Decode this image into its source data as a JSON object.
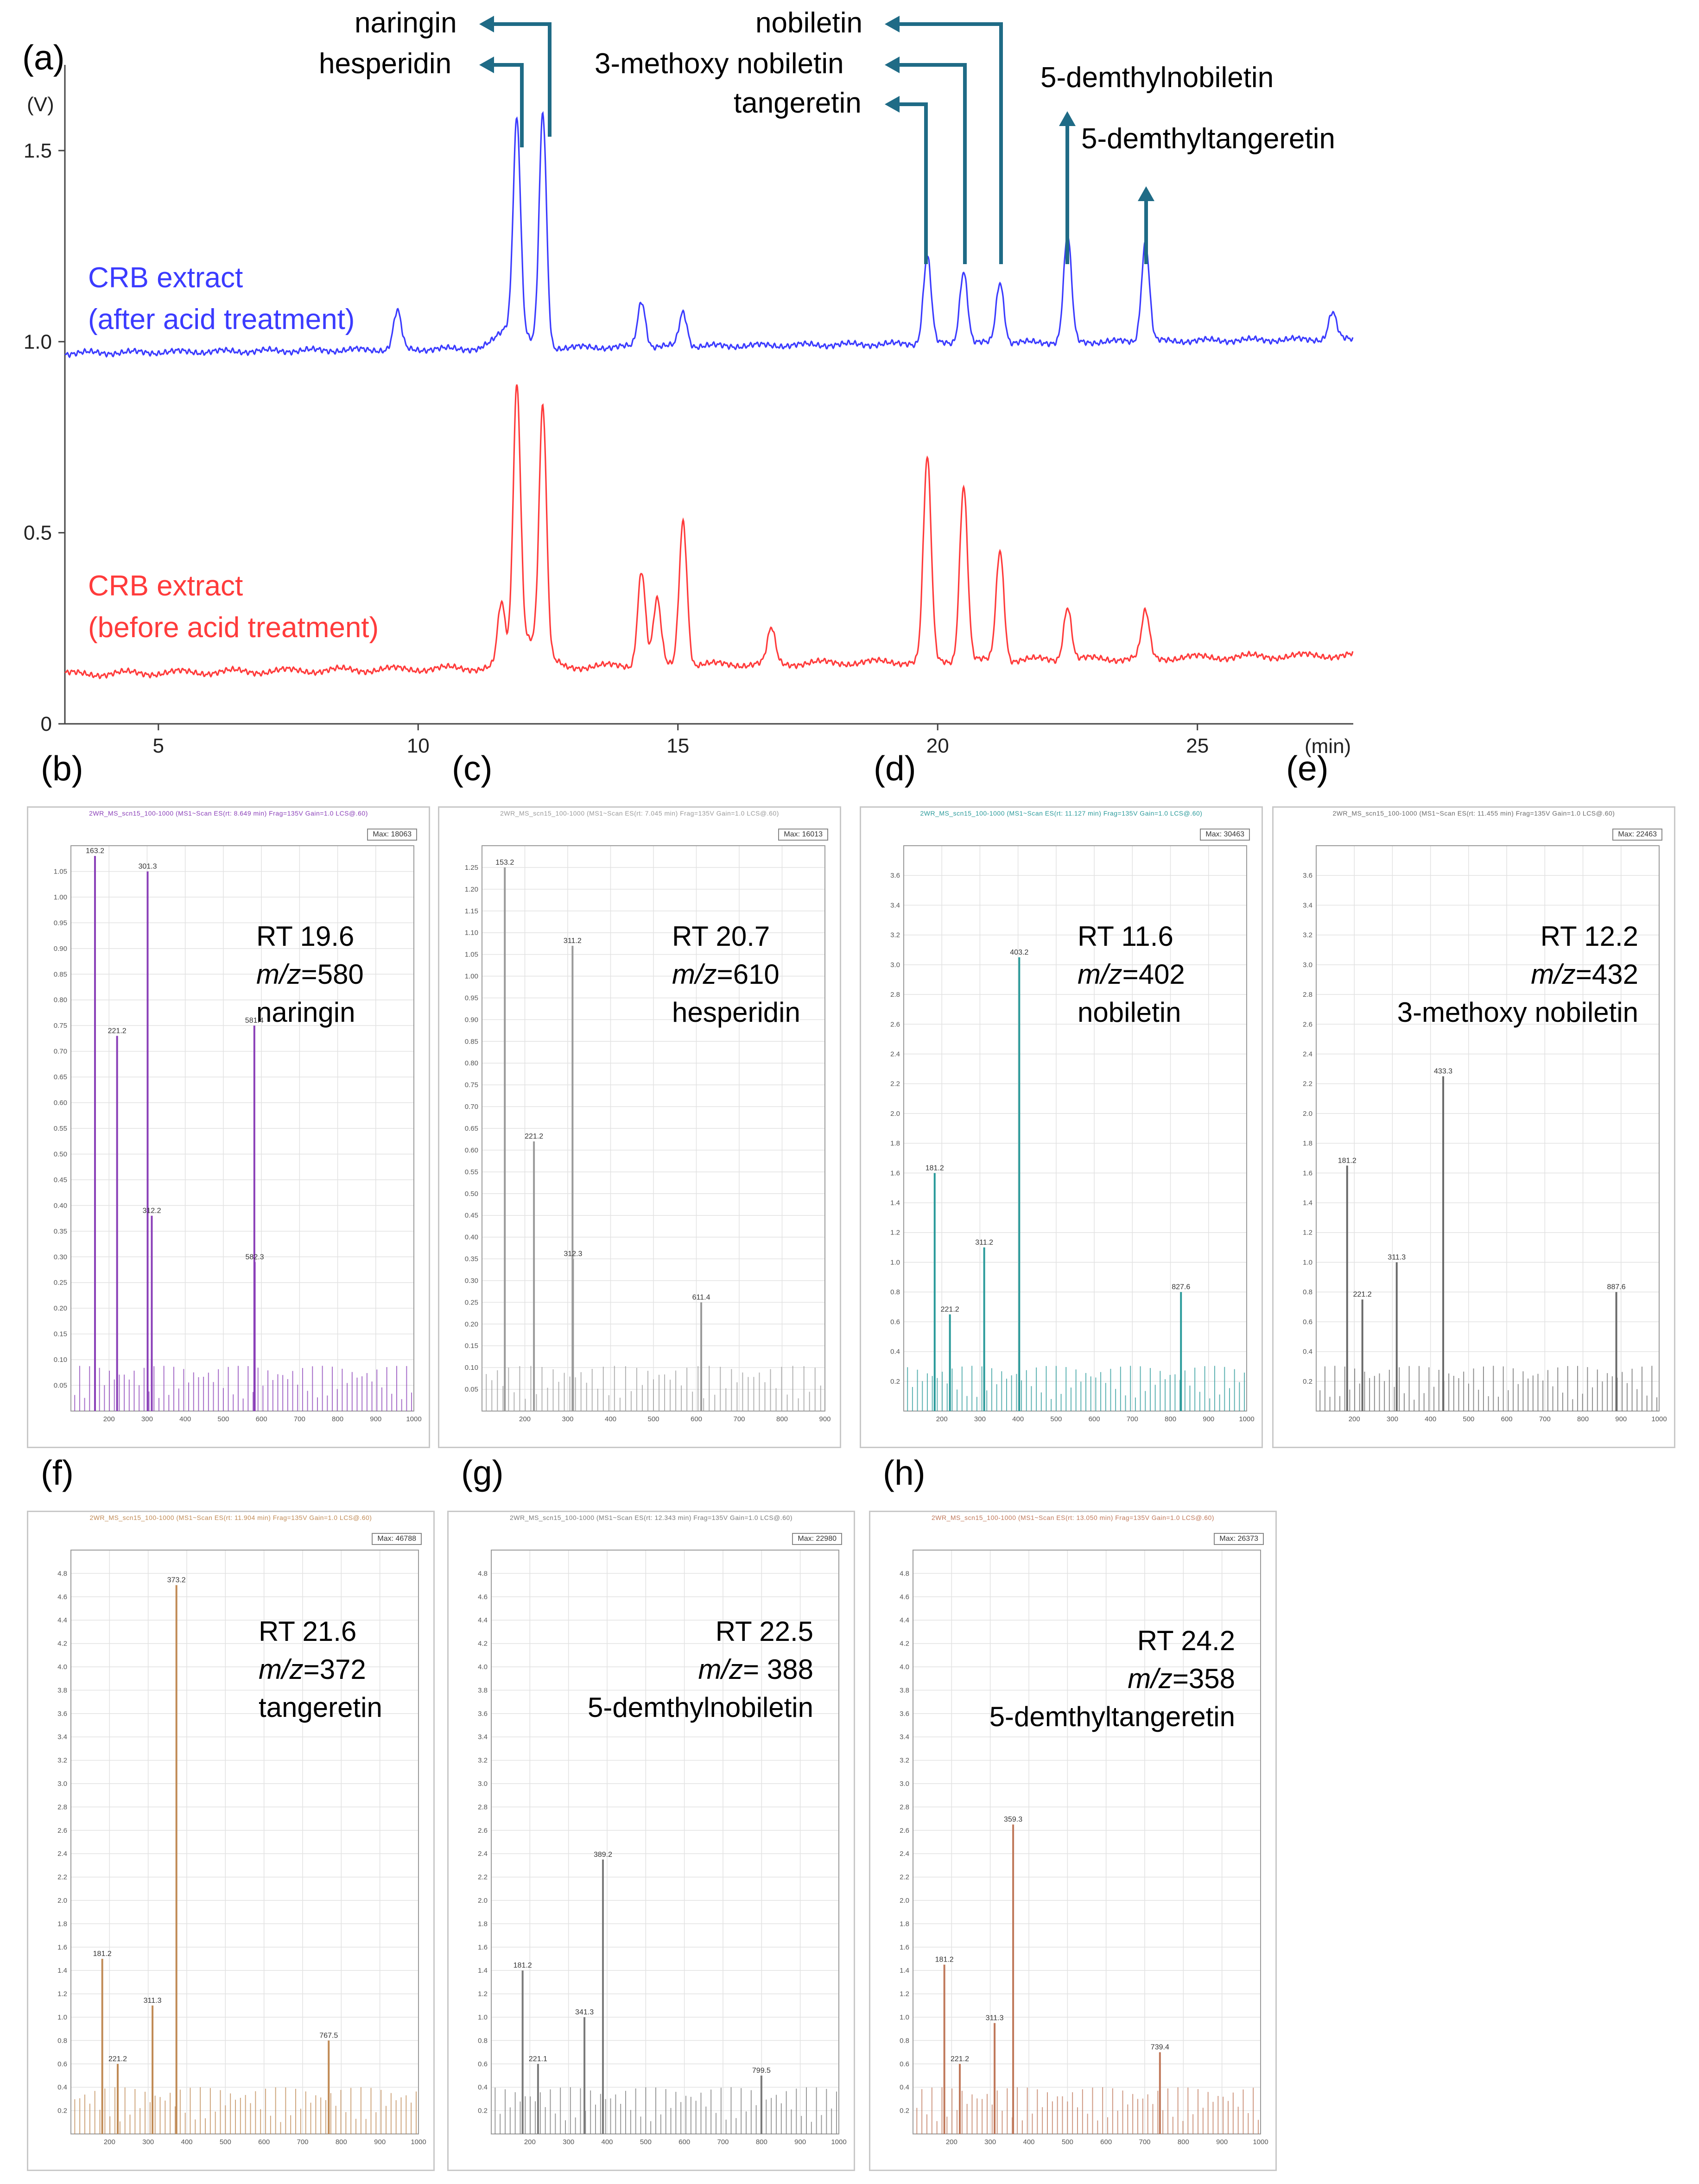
{
  "panel_a": {
    "letter": "(a)",
    "y_unit": "(V)",
    "x_unit": "(min)",
    "y_ticks": [
      "0",
      "0.5",
      "1.0",
      "1.5"
    ],
    "x_ticks": [
      "5",
      "10",
      "15",
      "20",
      "25"
    ],
    "trace_after_label_1": "CRB extract",
    "trace_after_label_2": "(after acid treatment)",
    "trace_before_label_1": "CRB extract",
    "trace_before_label_2": "(before acid treatment)",
    "compounds": {
      "naringin": "naringin",
      "hesperidin": "hesperidin",
      "nobiletin": "nobiletin",
      "methoxy_nobiletin": "3-methoxy nobiletin",
      "tangeretin": "tangeretin",
      "demethylnobiletin": "5-demthylnobiletin",
      "demethyltangeretin": "5-demthyltangeretin"
    },
    "colors": {
      "after": "#3b3bff",
      "before": "#ff3b3b",
      "arrow": "#1f6b86"
    }
  },
  "chart_data": [
    {
      "type": "line",
      "title": "",
      "xlabel": "(min)",
      "ylabel": "(V)",
      "xlim": [
        3.2,
        28
      ],
      "ylim": [
        0,
        1.7
      ],
      "series": [
        {
          "name": "CRB extract (after acid treatment)",
          "baseline": 0.97,
          "peaks": [
            {
              "x": 9.6,
              "y": 1.07,
              "label": ""
            },
            {
              "x": 11.9,
              "y": 1.52,
              "label": "naringin"
            },
            {
              "x": 12.4,
              "y": 1.58,
              "label": "hesperidin"
            },
            {
              "x": 14.3,
              "y": 1.09,
              "label": ""
            },
            {
              "x": 15.1,
              "y": 1.06,
              "label": ""
            },
            {
              "x": 19.8,
              "y": 1.2,
              "label": "tangeretin"
            },
            {
              "x": 20.5,
              "y": 1.16,
              "label": "3-methoxy nobiletin"
            },
            {
              "x": 21.2,
              "y": 1.13,
              "label": "nobiletin"
            },
            {
              "x": 22.5,
              "y": 1.25,
              "label": "5-demthylnobiletin"
            },
            {
              "x": 24.0,
              "y": 1.23,
              "label": "5-demthyltangeretin"
            },
            {
              "x": 27.6,
              "y": 1.04,
              "label": ""
            }
          ]
        },
        {
          "name": "CRB extract (before acid treatment)",
          "baseline": 0.13,
          "peaks": [
            {
              "x": 11.6,
              "y": 0.28,
              "label": ""
            },
            {
              "x": 11.9,
              "y": 0.81,
              "label": ""
            },
            {
              "x": 12.4,
              "y": 0.77,
              "label": ""
            },
            {
              "x": 14.3,
              "y": 0.38,
              "label": ""
            },
            {
              "x": 14.6,
              "y": 0.3,
              "label": ""
            },
            {
              "x": 15.1,
              "y": 0.51,
              "label": ""
            },
            {
              "x": 16.8,
              "y": 0.22,
              "label": ""
            },
            {
              "x": 19.8,
              "y": 0.66,
              "label": ""
            },
            {
              "x": 20.5,
              "y": 0.59,
              "label": ""
            },
            {
              "x": 21.2,
              "y": 0.42,
              "label": ""
            },
            {
              "x": 22.5,
              "y": 0.27,
              "label": ""
            },
            {
              "x": 24.0,
              "y": 0.25,
              "label": ""
            }
          ]
        }
      ]
    },
    {
      "type": "bar",
      "panel": "b",
      "xlim": [
        100,
        1000
      ],
      "ylim": [
        0,
        1.1
      ],
      "series": [
        {
          "x": [
            163.2,
            221.2,
            301.3,
            312.2,
            581.4,
            582.3
          ],
          "values": [
            1.08,
            0.73,
            1.05,
            0.38,
            0.75,
            0.29
          ]
        }
      ]
    },
    {
      "type": "bar",
      "panel": "c",
      "xlim": [
        100,
        900
      ],
      "ylim": [
        0,
        1.3
      ],
      "series": [
        {
          "x": [
            153.2,
            221.2,
            311.2,
            312.3,
            611.4
          ],
          "values": [
            1.25,
            0.62,
            1.07,
            0.35,
            0.25
          ]
        }
      ]
    },
    {
      "type": "bar",
      "panel": "d",
      "xlim": [
        100,
        1000
      ],
      "ylim": [
        0,
        3.8
      ],
      "series": [
        {
          "x": [
            181.2,
            221.2,
            311.2,
            403.2,
            827.6
          ],
          "values": [
            1.6,
            0.65,
            1.1,
            3.05,
            0.8
          ]
        }
      ]
    },
    {
      "type": "bar",
      "panel": "e",
      "xlim": [
        100,
        1000
      ],
      "ylim": [
        0,
        3.8
      ],
      "series": [
        {
          "x": [
            181.2,
            221.2,
            311.3,
            433.3,
            887.6
          ],
          "values": [
            1.65,
            0.75,
            1.0,
            2.25,
            0.8
          ]
        }
      ]
    },
    {
      "type": "bar",
      "panel": "f",
      "xlim": [
        100,
        1000
      ],
      "ylim": [
        0,
        5.0
      ],
      "series": [
        {
          "x": [
            181.2,
            221.2,
            311.3,
            373.2,
            767.5
          ],
          "values": [
            1.5,
            0.6,
            1.1,
            4.7,
            0.8
          ]
        }
      ]
    },
    {
      "type": "bar",
      "panel": "g",
      "xlim": [
        100,
        1000
      ],
      "ylim": [
        0,
        5.0
      ],
      "series": [
        {
          "x": [
            181.2,
            221.1,
            341.3,
            389.2,
            799.5
          ],
          "values": [
            1.4,
            0.6,
            1.0,
            2.35,
            0.5
          ]
        }
      ]
    },
    {
      "type": "bar",
      "panel": "h",
      "xlim": [
        100,
        1000
      ],
      "ylim": [
        0,
        5.0
      ],
      "series": [
        {
          "x": [
            181.2,
            221.2,
            311.3,
            359.3,
            739.4
          ],
          "values": [
            1.45,
            0.6,
            0.95,
            2.65,
            0.7
          ]
        }
      ]
    }
  ],
  "ms_panels": [
    {
      "letter": "(b)",
      "rt": "RT 19.6",
      "mz_prefix": "m/z",
      "mz_value": "=580",
      "compound": "naringin",
      "color": "#8a3fb8",
      "max_label": "Max: 18063",
      "header": "2WR_MS_scn15_100-1000 (MS1~Scan ES(rt: 8.649 min) Frag=135V Gain=1.0 LCS@.60)",
      "y_ticks": [
        "1.05",
        "1.00",
        "0.95",
        "0.90",
        "0.85",
        "0.80",
        "0.75",
        "0.70",
        "0.65",
        "0.60",
        "0.55",
        "0.50",
        "0.45",
        "0.40",
        "0.35",
        "0.30",
        "0.25",
        "0.20",
        "0.15",
        "0.10",
        "0.05"
      ],
      "x_ticks": [
        "200",
        "300",
        "400",
        "500",
        "600",
        "700",
        "800",
        "900",
        "1000"
      ],
      "peak_labels": [
        "163.2",
        "221.2",
        "301.3",
        "312.2",
        "581.4",
        "582.3"
      ]
    },
    {
      "letter": "(c)",
      "rt": "RT 20.7",
      "mz_prefix": "m/z",
      "mz_value": "=610",
      "compound": "hesperidin",
      "color": "#9a9a9a",
      "max_label": "Max: 16013",
      "header": "2WR_MS_scn15_100-1000 (MS1~Scan ES(rt: 7.045 min) Frag=135V Gain=1.0 LCS@.60)",
      "y_ticks": [
        "1.25",
        "1.20",
        "1.15",
        "1.10",
        "1.05",
        "1.00",
        "0.95",
        "0.90",
        "0.85",
        "0.80",
        "0.75",
        "0.70",
        "0.65",
        "0.60",
        "0.55",
        "0.50",
        "0.45",
        "0.40",
        "0.35",
        "0.30",
        "0.25",
        "0.20",
        "0.15",
        "0.10",
        "0.05"
      ],
      "x_ticks": [
        "200",
        "300",
        "400",
        "500",
        "600",
        "700",
        "800",
        "900"
      ],
      "peak_labels": [
        "153.2",
        "221.2",
        "311.2",
        "312.3",
        "611.4"
      ]
    },
    {
      "letter": "(d)",
      "rt": "RT 11.6",
      "mz_prefix": "m/z",
      "mz_value": "=402",
      "compound": "nobiletin",
      "color": "#2a9a9a",
      "max_label": "Max: 30463",
      "header": "2WR_MS_scn15_100-1000 (MS1~Scan ES(rt: 11.127 min) Frag=135V Gain=1.0 LCS@.60)",
      "y_ticks": [
        "3.6",
        "3.4",
        "3.2",
        "3.0",
        "2.8",
        "2.6",
        "2.4",
        "2.2",
        "2.0",
        "1.8",
        "1.6",
        "1.4",
        "1.2",
        "1.0",
        "0.8",
        "0.6",
        "0.4",
        "0.2"
      ],
      "x_ticks": [
        "200",
        "300",
        "400",
        "500",
        "600",
        "700",
        "800",
        "900",
        "1000"
      ],
      "peak_labels": [
        "181.2",
        "221.2",
        "311.2",
        "403.2",
        "827.6"
      ]
    },
    {
      "letter": "(e)",
      "rt": "RT 12.2",
      "mz_prefix": "m/z",
      "mz_value": "=432",
      "compound": "3-methoxy nobiletin",
      "color": "#6a6a6a",
      "max_label": "Max: 22463",
      "header": "2WR_MS_scn15_100-1000 (MS1~Scan ES(rt: 11.455 min) Frag=135V Gain=1.0 LCS@.60)",
      "y_ticks": [
        "3.6",
        "3.4",
        "3.2",
        "3.0",
        "2.8",
        "2.6",
        "2.4",
        "2.2",
        "2.0",
        "1.8",
        "1.6",
        "1.4",
        "1.2",
        "1.0",
        "0.8",
        "0.6",
        "0.4",
        "0.2"
      ],
      "x_ticks": [
        "200",
        "300",
        "400",
        "500",
        "600",
        "700",
        "800",
        "900",
        "1000"
      ],
      "peak_labels": [
        "181.2",
        "221.2",
        "311.3",
        "433.3",
        "887.6"
      ]
    },
    {
      "letter": "(f)",
      "rt": "RT 21.6",
      "mz_prefix": "m/z",
      "mz_value": "=372",
      "compound": "tangeretin",
      "color": "#c08a55",
      "max_label": "Max: 46788",
      "header": "2WR_MS_scn15_100-1000 (MS1~Scan ES(rt: 11.904 min) Frag=135V Gain=1.0 LCS@.60)",
      "y_ticks": [
        "4.8",
        "4.6",
        "4.4",
        "4.2",
        "4.0",
        "3.8",
        "3.6",
        "3.4",
        "3.2",
        "3.0",
        "2.8",
        "2.6",
        "2.4",
        "2.2",
        "2.0",
        "1.8",
        "1.6",
        "1.4",
        "1.2",
        "1.0",
        "0.8",
        "0.6",
        "0.4",
        "0.2"
      ],
      "x_ticks": [
        "200",
        "300",
        "400",
        "500",
        "600",
        "700",
        "800",
        "900",
        "1000"
      ],
      "peak_labels": [
        "181.2",
        "221.2",
        "311.3",
        "373.2",
        "767.5"
      ]
    },
    {
      "letter": "(g)",
      "rt": "RT 22.5",
      "mz_prefix": "m/z",
      "mz_value": "= 388",
      "compound": "5-demthylnobiletin",
      "color": "#7a7a7a",
      "max_label": "Max: 22980",
      "header": "2WR_MS_scn15_100-1000 (MS1~Scan ES(rt: 12.343 min) Frag=135V Gain=1.0 LCS@.60)",
      "y_ticks": [
        "4.8",
        "4.6",
        "4.4",
        "4.2",
        "4.0",
        "3.8",
        "3.6",
        "3.4",
        "3.2",
        "3.0",
        "2.8",
        "2.6",
        "2.4",
        "2.2",
        "2.0",
        "1.8",
        "1.6",
        "1.4",
        "1.2",
        "1.0",
        "0.8",
        "0.6",
        "0.4",
        "0.2"
      ],
      "x_ticks": [
        "200",
        "300",
        "400",
        "500",
        "600",
        "700",
        "800",
        "900",
        "1000"
      ],
      "peak_labels": [
        "181.2",
        "221.1",
        "341.3",
        "389.2",
        "799.5"
      ]
    },
    {
      "letter": "(h)",
      "rt": "RT 24.2",
      "mz_prefix": "m/z",
      "mz_value": "=358",
      "compound": "5-demthyltangeretin",
      "color": "#c0785a",
      "max_label": "Max: 26373",
      "header": "2WR_MS_scn15_100-1000 (MS1~Scan ES(rt: 13.050 min) Frag=135V Gain=1.0 LCS@.60)",
      "y_ticks": [
        "4.8",
        "4.6",
        "4.4",
        "4.2",
        "4.0",
        "3.8",
        "3.6",
        "3.4",
        "3.2",
        "3.0",
        "2.8",
        "2.6",
        "2.4",
        "2.2",
        "2.0",
        "1.8",
        "1.6",
        "1.4",
        "1.2",
        "1.0",
        "0.8",
        "0.6",
        "0.4",
        "0.2"
      ],
      "x_ticks": [
        "200",
        "300",
        "400",
        "500",
        "600",
        "700",
        "800",
        "900",
        "1000"
      ],
      "peak_labels": [
        "181.2",
        "221.2",
        "311.3",
        "359.3",
        "739.4"
      ]
    }
  ]
}
